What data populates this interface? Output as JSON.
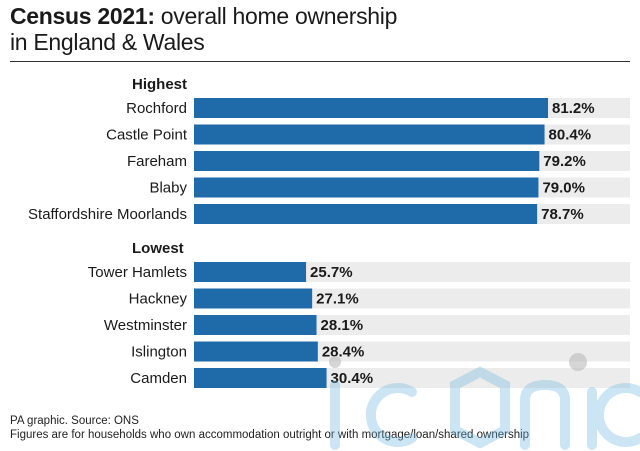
{
  "title": {
    "bold": "Census 2021:",
    "rest": " overall home ownership",
    "line2": "in England & Wales"
  },
  "chart_data": {
    "type": "bar",
    "orientation": "horizontal",
    "xlim": [
      0,
      100
    ],
    "groups": [
      {
        "label": "Highest",
        "categories": [
          "Rochford",
          "Castle Point",
          "Fareham",
          "Blaby",
          "Staffordshire Moorlands"
        ],
        "values": [
          81.2,
          80.4,
          79.2,
          79.0,
          78.7
        ],
        "labels": [
          "81.2%",
          "80.4%",
          "79.2%",
          "79.0%",
          "78.7%"
        ]
      },
      {
        "label": "Lowest",
        "categories": [
          "Tower Hamlets",
          "Hackney",
          "Westminster",
          "Islington",
          "Camden"
        ],
        "values": [
          25.7,
          27.1,
          28.1,
          28.4,
          30.4
        ],
        "labels": [
          "25.7%",
          "27.1%",
          "28.1%",
          "28.4%",
          "30.4%"
        ]
      }
    ],
    "bar_color": "#1f6aa8",
    "track_color": "#ececec"
  },
  "footer": {
    "source": "PA graphic. Source: ONS",
    "note": "Figures are for households who own accommodation outright or with mortgage/loan/shared ownership"
  },
  "watermark": {
    "text": "iconic"
  }
}
